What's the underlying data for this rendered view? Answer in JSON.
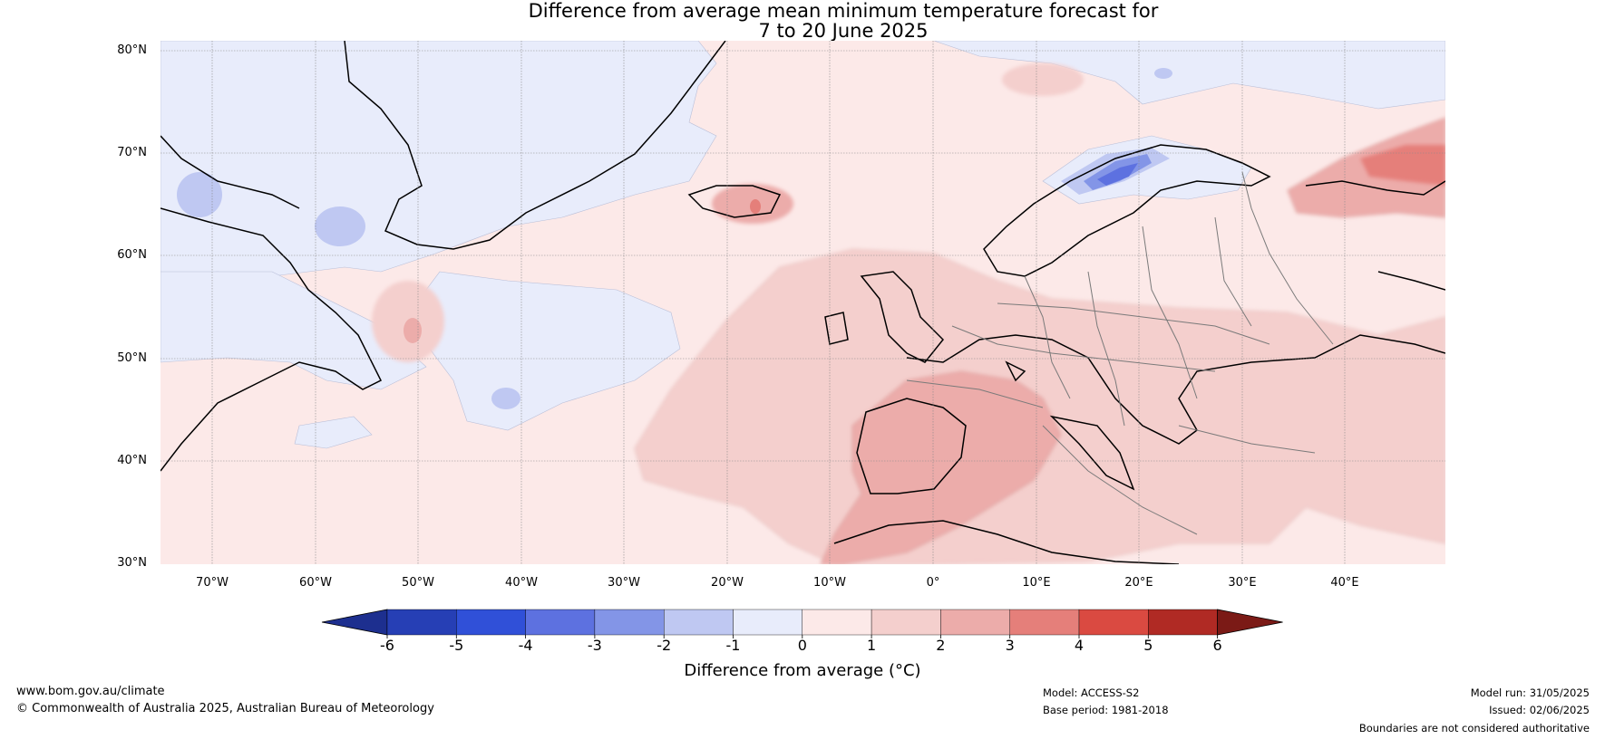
{
  "title": {
    "line1": "Difference from average mean minimum temperature forecast for",
    "line2": "7 to 20 June 2025"
  },
  "map": {
    "lat_labels": [
      "80°N",
      "70°N",
      "60°N",
      "50°N",
      "40°N",
      "30°N"
    ],
    "lon_labels": [
      "70°W",
      "60°W",
      "50°W",
      "40°W",
      "30°W",
      "20°W",
      "10°W",
      "0°",
      "10°E",
      "20°E",
      "30°E",
      "40°E"
    ]
  },
  "colorbar": {
    "ticks": [
      "-6",
      "-5",
      "-4",
      "-3",
      "-2",
      "-1",
      "0",
      "1",
      "2",
      "3",
      "4",
      "5",
      "6"
    ],
    "colors": [
      "#1d2f8f",
      "#263fb5",
      "#3050d8",
      "#5d71e0",
      "#8395e7",
      "#bfc8f2",
      "#e8ecfb",
      "#fce9e8",
      "#f4cfcd",
      "#ecacaa",
      "#e57f7a",
      "#da4a41",
      "#b02a24",
      "#7b1a16"
    ],
    "label": "Difference from average (°C)"
  },
  "footer": {
    "url": "www.bom.gov.au/climate",
    "copyright": "© Commonwealth of Australia 2025, Australian Bureau of Meteorology",
    "model": "Model: ACCESS-S2",
    "base_period": "Base period: 1981-2018",
    "model_run": "Model run: 31/05/2025",
    "issued": "Issued: 02/06/2025",
    "disclaimer": "Boundaries are not considered authoritative"
  }
}
